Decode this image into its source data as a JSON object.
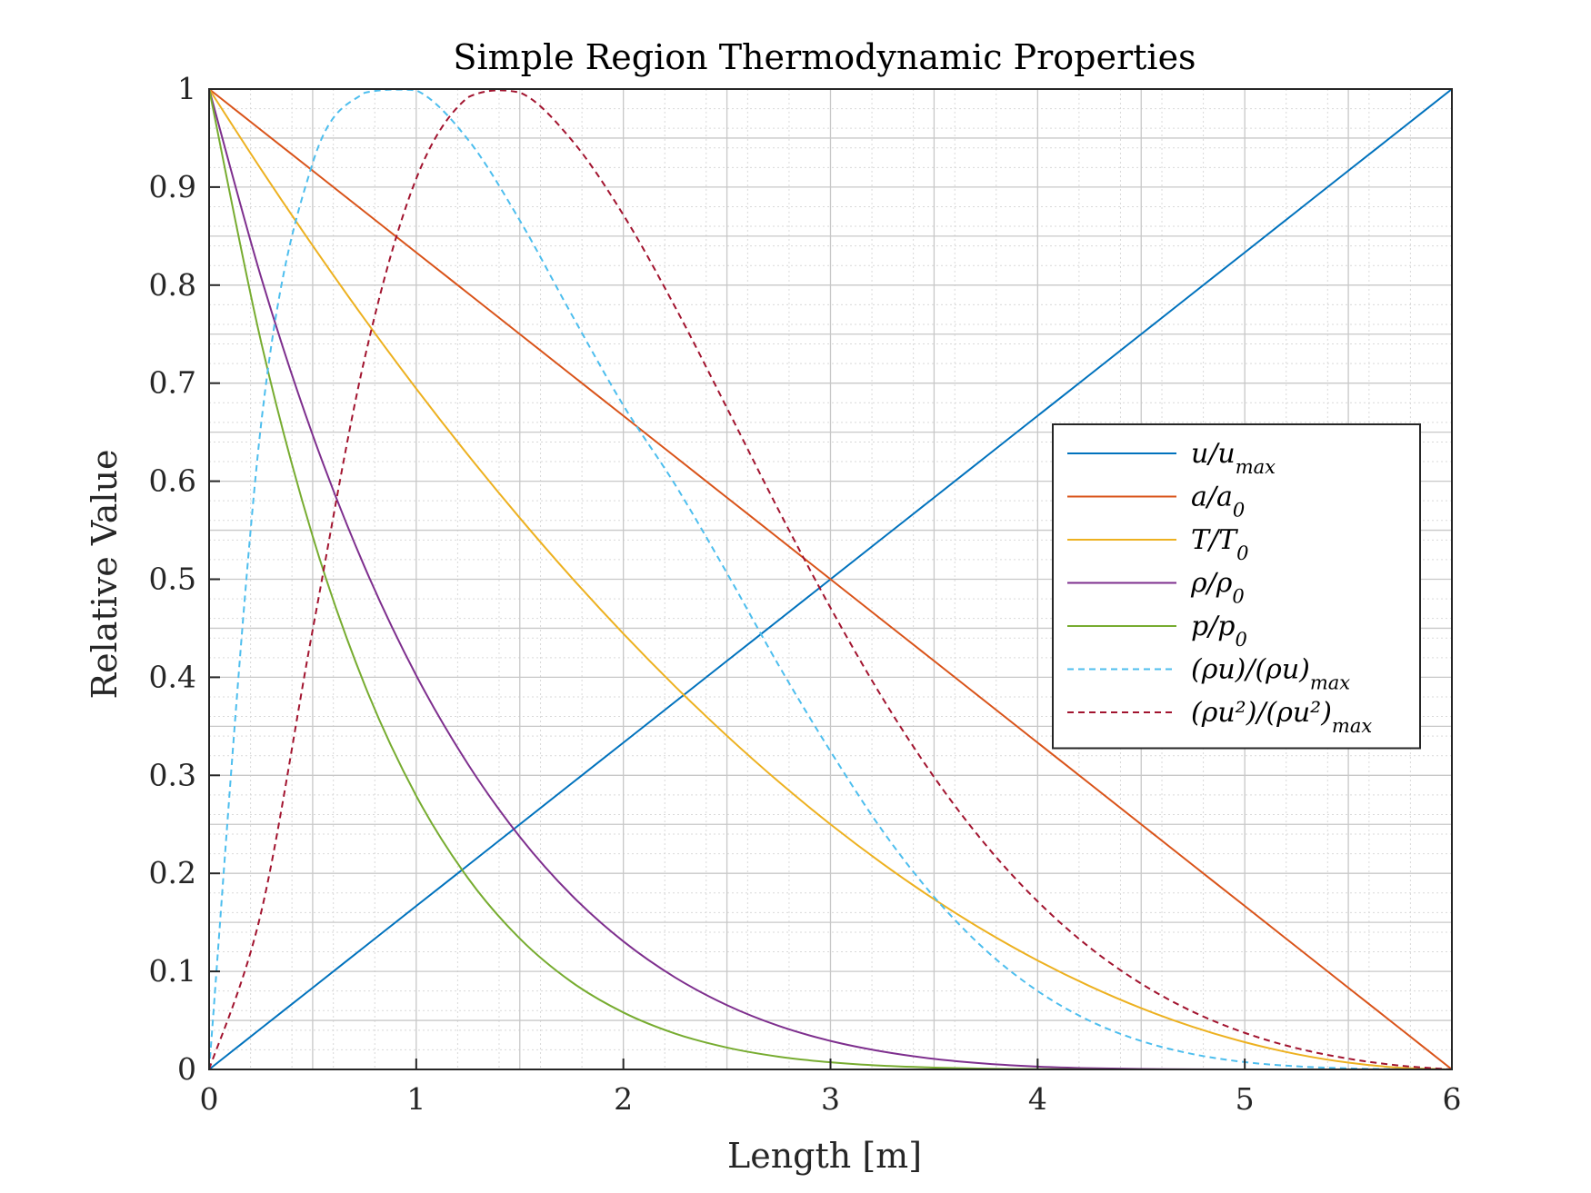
{
  "chart_data": {
    "type": "line",
    "title": "Simple Region Thermodynamic Properties",
    "xlabel": "Length [m]",
    "ylabel": "Relative Value",
    "xlim": [
      0,
      6
    ],
    "ylim": [
      0,
      1
    ],
    "xticks": [
      0,
      1,
      2,
      3,
      4,
      5,
      6
    ],
    "yticks": [
      0,
      0.1,
      0.2,
      0.3,
      0.4,
      0.5,
      0.6,
      0.7,
      0.8,
      0.9,
      1
    ],
    "xtick_labels": [
      "0",
      "1",
      "2",
      "3",
      "4",
      "5",
      "6"
    ],
    "ytick_labels": [
      "0",
      "0.1",
      "0.2",
      "0.3",
      "0.4",
      "0.5",
      "0.6",
      "0.7",
      "0.8",
      "0.9",
      "1"
    ],
    "grid": true,
    "minor_grid": true,
    "legend_position": "right",
    "x": [
      0,
      0.25,
      0.5,
      0.75,
      1,
      1.25,
      1.5,
      1.75,
      2,
      2.25,
      2.5,
      2.75,
      3,
      3.25,
      3.5,
      3.75,
      4,
      4.25,
      4.5,
      4.75,
      5,
      5.25,
      5.5,
      5.75,
      6
    ],
    "series": [
      {
        "key": "u",
        "legend": {
          "main": "u/u",
          "sub": "max"
        },
        "color": "#0072BD",
        "dashed": false,
        "values": [
          0,
          0.0417,
          0.0833,
          0.125,
          0.1667,
          0.2083,
          0.25,
          0.2917,
          0.3333,
          0.375,
          0.4167,
          0.4583,
          0.5,
          0.5417,
          0.5833,
          0.625,
          0.6667,
          0.7083,
          0.75,
          0.7917,
          0.8333,
          0.875,
          0.9167,
          0.9583,
          1
        ]
      },
      {
        "key": "a",
        "legend": {
          "main": "a/a",
          "sub": "0"
        },
        "color": "#D95319",
        "dashed": false,
        "values": [
          1,
          0.9583,
          0.9167,
          0.875,
          0.8333,
          0.7917,
          0.75,
          0.7083,
          0.6667,
          0.625,
          0.5833,
          0.5417,
          0.5,
          0.4583,
          0.4167,
          0.375,
          0.3333,
          0.2917,
          0.25,
          0.2083,
          0.1667,
          0.125,
          0.0833,
          0.0417,
          0
        ]
      },
      {
        "key": "T",
        "legend": {
          "main": "T/T",
          "sub": "0"
        },
        "color": "#EDB120",
        "dashed": false,
        "values": [
          1,
          0.9184,
          0.8403,
          0.7656,
          0.6944,
          0.6267,
          0.5625,
          0.5017,
          0.4444,
          0.3906,
          0.3403,
          0.2934,
          0.25,
          0.2101,
          0.1736,
          0.1406,
          0.1111,
          0.0851,
          0.0625,
          0.0434,
          0.0278,
          0.0156,
          0.0069,
          0.0017,
          0
        ]
      },
      {
        "key": "rho",
        "legend": {
          "main": "ρ/ρ",
          "sub": "0"
        },
        "color": "#7E2F8E",
        "dashed": false,
        "values": [
          1,
          0.8087,
          0.6472,
          0.5129,
          0.4019,
          0.3113,
          0.2373,
          0.1777,
          0.1306,
          0.0938,
          0.0656,
          0.0444,
          0.0291,
          0.0183,
          0.0108,
          0.0059,
          0.0029,
          0.0013,
          0.0005,
          0.0001,
          0.0,
          0,
          0,
          0,
          0
        ]
      },
      {
        "key": "p",
        "legend": {
          "main": "p/p",
          "sub": "0"
        },
        "color": "#77AC30",
        "dashed": false,
        "values": [
          1,
          0.743,
          0.5438,
          0.3927,
          0.2791,
          0.1951,
          0.1335,
          0.0892,
          0.0581,
          0.0366,
          0.0223,
          0.013,
          0.0073,
          0.0038,
          0.0019,
          0.0008,
          0.0003,
          0.0001,
          0.0,
          0,
          0,
          0,
          0,
          0,
          0
        ]
      },
      {
        "key": "rhou",
        "legend": {
          "main": "(ρu)/(ρu)",
          "sub": "max"
        },
        "color": "#4DBEEE",
        "dashed": true,
        "values": [
          0,
          0.6563,
          0.9245,
          0.9961,
          0.9987,
          0.9484,
          0.866,
          0.7701,
          0.6773,
          0.5964,
          0.5063,
          0.4121,
          0.3245,
          0.2438,
          0.176,
          0.1215,
          0.08,
          0.0497,
          0.029,
          0.0156,
          0.0075,
          0.0032,
          0.0011,
          0.0002,
          0
        ]
      },
      {
        "key": "rhou2",
        "legend": {
          "main": "(ρu²)/(ρu²)",
          "sub": "max"
        },
        "color": "#A2142F",
        "dashed": true,
        "values": [
          0,
          0.1591,
          0.4483,
          0.7244,
          0.9086,
          0.9916,
          0.9965,
          0.9481,
          0.8716,
          0.7776,
          0.6747,
          0.5703,
          0.4709,
          0.3792,
          0.2982,
          0.2289,
          0.1714,
          0.1246,
          0.0875,
          0.0588,
          0.0373,
          0.0217,
          0.011,
          0.0039,
          0
        ]
      }
    ]
  }
}
